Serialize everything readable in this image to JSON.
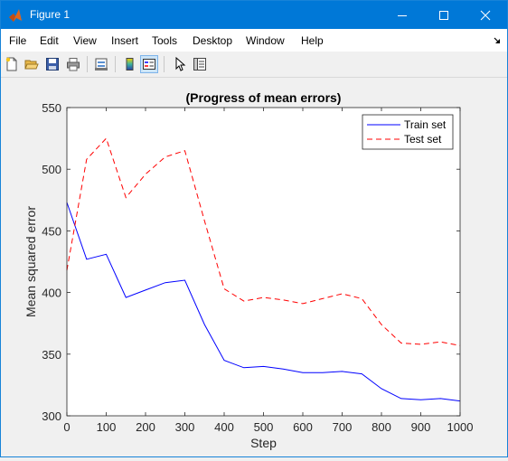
{
  "window": {
    "title": "Figure 1",
    "icon": "matlab-icon",
    "controls": [
      "minimize-icon",
      "maximize-icon",
      "close-icon"
    ]
  },
  "menu": {
    "items": [
      "File",
      "Edit",
      "View",
      "Insert",
      "Tools",
      "Desktop",
      "Window",
      "Help"
    ],
    "dock_icon": "dock-arrow-icon"
  },
  "toolbar": {
    "buttons": [
      "new-figure-icon",
      "open-icon",
      "save-icon",
      "print-icon",
      "link-plot-icon",
      "insert-colorbar-icon",
      "insert-legend-icon",
      "edit-plot-icon",
      "property-inspector-icon"
    ]
  },
  "colors": {
    "train": "#0000ff",
    "test": "#ff0000",
    "titlebar": "#0078d7"
  },
  "chart_data": {
    "type": "line",
    "title": "(Progress of mean errors)",
    "xlabel": "Step",
    "ylabel": "Mean squared error",
    "xlim": [
      0,
      1000
    ],
    "ylim": [
      300,
      550
    ],
    "xticks": [
      "0",
      "100",
      "200",
      "300",
      "400",
      "500",
      "600",
      "700",
      "800",
      "900",
      "1000"
    ],
    "yticks": [
      "300",
      "350",
      "400",
      "450",
      "500",
      "550"
    ],
    "grid": false,
    "legend_position": "top-right",
    "x": [
      0,
      50,
      100,
      150,
      200,
      250,
      300,
      350,
      400,
      450,
      500,
      550,
      600,
      650,
      700,
      750,
      800,
      850,
      900,
      950,
      1000
    ],
    "series": [
      {
        "name": "Train set",
        "style": "solid",
        "values": [
          473,
          427,
          431,
          396,
          402,
          408,
          410,
          374,
          345,
          339,
          340,
          338,
          335,
          335,
          336,
          334,
          322,
          314,
          313,
          314,
          312
        ]
      },
      {
        "name": "Test set",
        "style": "dashed",
        "values": [
          418,
          508,
          525,
          477,
          496,
          510,
          515,
          458,
          403,
          393,
          396,
          394,
          391,
          395,
          399,
          395,
          374,
          359,
          358,
          360,
          357
        ]
      }
    ]
  }
}
